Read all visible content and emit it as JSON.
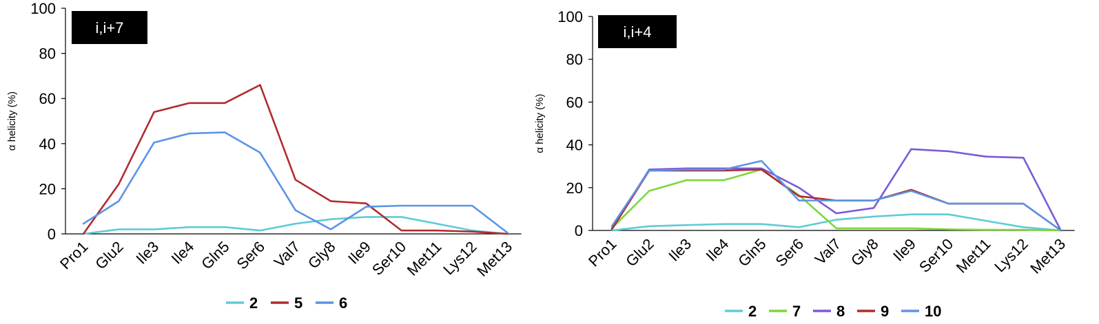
{
  "chart_data": [
    {
      "type": "line",
      "annotation": "i,i+7",
      "ylabel": "α helicity (%)",
      "xlabel": "",
      "ylim": [
        0,
        100
      ],
      "yticks": [
        0,
        20,
        40,
        60,
        80,
        100
      ],
      "grid": false,
      "legend_position": "bottom",
      "categories": [
        "Pro1",
        "Glu2",
        "Ile3",
        "Ile4",
        "Gln5",
        "Ser6",
        "Val7",
        "Gly8",
        "Ile9",
        "Ser10",
        "Met11",
        "Lys12",
        "Met13"
      ],
      "series": [
        {
          "name": "2",
          "color": "#5ecbd6",
          "values": [
            0,
            2,
            2,
            3,
            3,
            1.5,
            4.5,
            6.5,
            7.5,
            7.5,
            4.5,
            1.5,
            0
          ]
        },
        {
          "name": "5",
          "color": "#b22a2e",
          "values": [
            0,
            22,
            54,
            58,
            58,
            66,
            24,
            14.5,
            13.5,
            1.5,
            1.5,
            1,
            0
          ]
        },
        {
          "name": "6",
          "color": "#5a93e6",
          "values": [
            4.5,
            14.5,
            40.5,
            44.5,
            45,
            36,
            10.5,
            2,
            12,
            12.5,
            12.5,
            12.5,
            0.5
          ]
        }
      ]
    },
    {
      "type": "line",
      "annotation": "i,i+4",
      "ylabel": "α helicity (%)",
      "xlabel": "",
      "ylim": [
        0,
        100
      ],
      "yticks": [
        0,
        20,
        40,
        60,
        80,
        100
      ],
      "grid": false,
      "legend_position": "bottom",
      "categories": [
        "Pro1",
        "Glu2",
        "Ile3",
        "Ile4",
        "Gln5",
        "Ser6",
        "Val7",
        "Gly8",
        "Ile9",
        "Ser10",
        "Met11",
        "Lys12",
        "Met13"
      ],
      "series": [
        {
          "name": "2",
          "color": "#5ecbd6",
          "values": [
            0,
            2,
            2.5,
            3,
            3,
            1.5,
            5,
            6.5,
            7.5,
            7.5,
            4.5,
            1.5,
            0
          ]
        },
        {
          "name": "7",
          "color": "#7ed63a",
          "values": [
            1,
            18.5,
            23.5,
            23.5,
            28.5,
            16.5,
            1,
            1,
            1,
            0.5,
            0.3,
            0.3,
            0
          ]
        },
        {
          "name": "8",
          "color": "#7a5ad6",
          "values": [
            1,
            28.5,
            29,
            29,
            29,
            20,
            8,
            10.5,
            38,
            37,
            34.5,
            34,
            0
          ]
        },
        {
          "name": "9",
          "color": "#b22a2e",
          "values": [
            0.5,
            28,
            28,
            28,
            28.5,
            16,
            14,
            14,
            19,
            12.5,
            12.5,
            12.5,
            0
          ]
        },
        {
          "name": "10",
          "color": "#5a93e6",
          "values": [
            2,
            28,
            28.5,
            28.5,
            32.5,
            14,
            14,
            14,
            18.5,
            12.5,
            12.5,
            12.5,
            0
          ]
        }
      ]
    }
  ]
}
